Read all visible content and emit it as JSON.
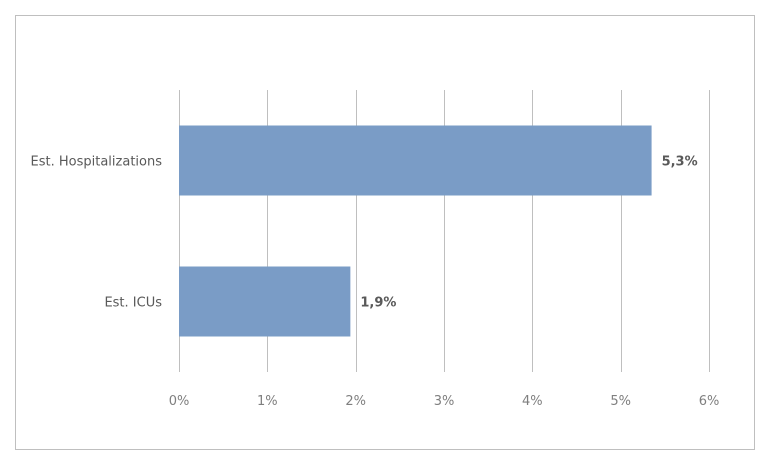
{
  "chart_data": {
    "type": "bar",
    "orientation": "horizontal",
    "categories": [
      "Est. Hospitalizations",
      "Est. ICUs"
    ],
    "values": [
      5.35,
      1.94
    ],
    "data_labels": [
      "5,3%",
      "1,9%"
    ],
    "xlim": [
      0,
      6
    ],
    "x_ticks": [
      0,
      1,
      2,
      3,
      4,
      5,
      6
    ],
    "x_tick_labels": [
      "0%",
      "1%",
      "2%",
      "3%",
      "4%",
      "5%",
      "6%"
    ],
    "grid": true,
    "legend": "none",
    "bar_color": "#7a9cc6",
    "grid_color": "#bfbfbf"
  }
}
